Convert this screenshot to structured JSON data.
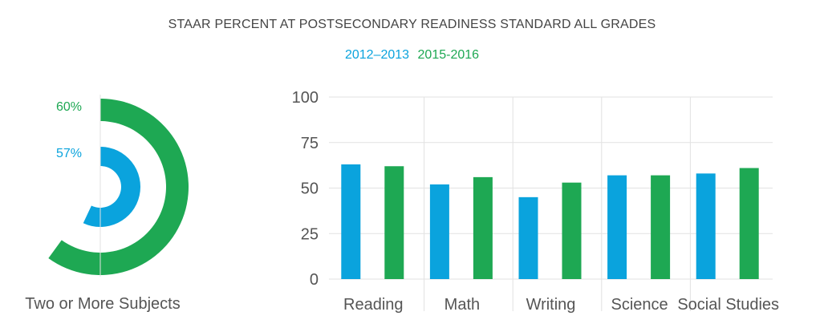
{
  "title": "STAAR PERCENT AT POSTSECONDARY READINESS STANDARD ALL GRADES",
  "colors": {
    "blue": "#0aa3dd",
    "green": "#1ea853",
    "grid": "#e2e2e2",
    "text": "#555555"
  },
  "chart_data": [
    {
      "type": "pie",
      "subtype": "radial",
      "title": "Two or More Subjects",
      "series": [
        {
          "name": "2012–2013",
          "value": 57,
          "label": "57%"
        },
        {
          "name": "2015-2016",
          "value": 60,
          "label": "60%"
        }
      ]
    },
    {
      "type": "bar",
      "categories": [
        "Reading",
        "Math",
        "Writing",
        "Science",
        "Social Studies"
      ],
      "series": [
        {
          "name": "2012–2013",
          "values": [
            63,
            52,
            45,
            57,
            58
          ]
        },
        {
          "name": "2015-2016",
          "values": [
            62,
            56,
            53,
            57,
            61
          ]
        }
      ],
      "ylim": [
        0,
        100
      ],
      "yticks": [
        "0",
        "25",
        "50",
        "75",
        "100"
      ],
      "grid": true,
      "legend": "top-center"
    }
  ]
}
